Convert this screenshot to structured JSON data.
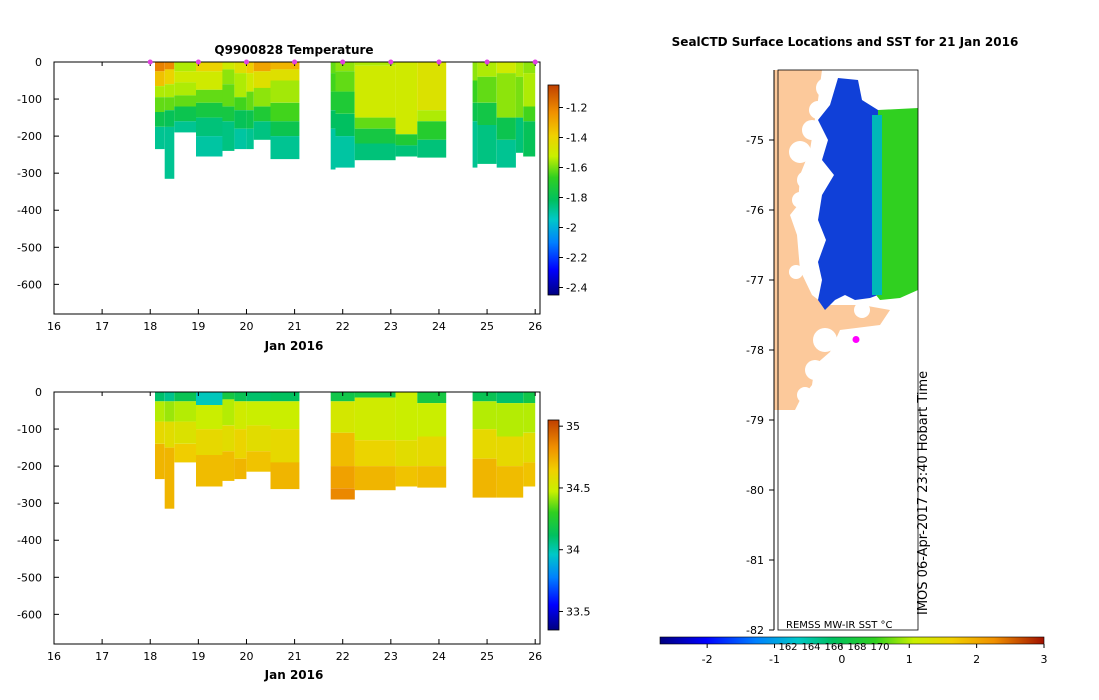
{
  "chart_data": [
    {
      "type": "heatmap",
      "title": "Q9900828  Temperature",
      "xlabel": "Jan 2016",
      "xlim": [
        16,
        26.1
      ],
      "ylim": [
        -680,
        0
      ],
      "xticks": [
        "16",
        "17",
        "18",
        "19",
        "20",
        "21",
        "22",
        "23",
        "24",
        "25",
        "26"
      ],
      "yticks": [
        "0",
        "-100",
        "-200",
        "-300",
        "-400",
        "-500",
        "-600"
      ],
      "colorbar": {
        "range": [
          -2.45,
          -1.05
        ],
        "ticks": [
          "-1.2",
          "-1.4",
          "-1.6",
          "-1.8",
          "-2",
          "-2.2",
          "-2.4"
        ]
      },
      "profile_markers": [
        18,
        19,
        20,
        21,
        22,
        23,
        24,
        25,
        26
      ],
      "profiles": [
        {
          "t0": 18.1,
          "t1": 18.3,
          "bottom": -235,
          "layers": [
            [
              0,
              -25,
              -1.2
            ],
            [
              -25,
              -65,
              -1.35
            ],
            [
              -65,
              -95,
              -1.55
            ],
            [
              -95,
              -135,
              -1.62
            ],
            [
              -135,
              -175,
              -1.78
            ],
            [
              -175,
              -235,
              -1.88
            ]
          ]
        },
        {
          "t0": 18.3,
          "t1": 18.5,
          "bottom": -315,
          "layers": [
            [
              0,
              -20,
              -1.22
            ],
            [
              -20,
              -60,
              -1.4
            ],
            [
              -60,
              -95,
              -1.55
            ],
            [
              -95,
              -130,
              -1.62
            ],
            [
              -130,
              -175,
              -1.8
            ],
            [
              -175,
              -315,
              -1.88
            ]
          ]
        },
        {
          "t0": 18.5,
          "t1": 18.95,
          "bottom": -190,
          "layers": [
            [
              0,
              -25,
              -1.55
            ],
            [
              -25,
              -55,
              -1.5
            ],
            [
              -55,
              -90,
              -1.55
            ],
            [
              -90,
              -120,
              -1.62
            ],
            [
              -120,
              -160,
              -1.78
            ],
            [
              -160,
              -190,
              -1.88
            ]
          ]
        },
        {
          "t0": 18.95,
          "t1": 19.5,
          "bottom": -255,
          "layers": [
            [
              0,
              -25,
              -1.4
            ],
            [
              -25,
              -75,
              -1.5
            ],
            [
              -75,
              -110,
              -1.62
            ],
            [
              -110,
              -150,
              -1.75
            ],
            [
              -150,
              -200,
              -1.85
            ],
            [
              -200,
              -255,
              -1.9
            ]
          ]
        },
        {
          "t0": 19.5,
          "t1": 19.75,
          "bottom": -240,
          "layers": [
            [
              0,
              -20,
              -1.5
            ],
            [
              -20,
              -60,
              -1.58
            ],
            [
              -60,
              -120,
              -1.62
            ],
            [
              -120,
              -160,
              -1.75
            ],
            [
              -160,
              -240,
              -1.86
            ]
          ]
        },
        {
          "t0": 19.75,
          "t1": 20.0,
          "bottom": -235,
          "layers": [
            [
              0,
              -30,
              -1.45
            ],
            [
              -30,
              -95,
              -1.55
            ],
            [
              -95,
              -130,
              -1.65
            ],
            [
              -130,
              -180,
              -1.8
            ],
            [
              -180,
              -235,
              -1.9
            ]
          ]
        },
        {
          "t0": 20.0,
          "t1": 20.15,
          "bottom": -235,
          "layers": [
            [
              0,
              -30,
              -1.38
            ],
            [
              -30,
              -80,
              -1.5
            ],
            [
              -80,
              -130,
              -1.62
            ],
            [
              -130,
              -180,
              -1.78
            ],
            [
              -180,
              -235,
              -1.88
            ]
          ]
        },
        {
          "t0": 20.15,
          "t1": 20.5,
          "bottom": -210,
          "layers": [
            [
              0,
              -25,
              -1.28
            ],
            [
              -25,
              -70,
              -1.45
            ],
            [
              -70,
              -120,
              -1.58
            ],
            [
              -120,
              -160,
              -1.72
            ],
            [
              -160,
              -210,
              -1.86
            ]
          ]
        },
        {
          "t0": 20.5,
          "t1": 21.1,
          "bottom": -262,
          "layers": [
            [
              0,
              -20,
              -1.32
            ],
            [
              -20,
              -50,
              -1.45
            ],
            [
              -50,
              -110,
              -1.56
            ],
            [
              -110,
              -160,
              -1.65
            ],
            [
              -160,
              -200,
              -1.78
            ],
            [
              -200,
              -262,
              -1.88
            ]
          ]
        },
        {
          "t0": 21.75,
          "t1": 21.85,
          "bottom": -290,
          "layers": [
            [
              0,
              -30,
              -1.62
            ],
            [
              -30,
              -80,
              -1.65
            ],
            [
              -80,
              -130,
              -1.72
            ],
            [
              -130,
              -180,
              -1.82
            ],
            [
              -180,
              -290,
              -1.9
            ]
          ]
        },
        {
          "t0": 21.85,
          "t1": 22.25,
          "bottom": -285,
          "layers": [
            [
              0,
              -25,
              -1.58
            ],
            [
              -25,
              -80,
              -1.62
            ],
            [
              -80,
              -140,
              -1.72
            ],
            [
              -140,
              -200,
              -1.82
            ],
            [
              -200,
              -285,
              -1.9
            ]
          ]
        },
        {
          "t0": 22.25,
          "t1": 23.1,
          "bottom": -265,
          "layers": [
            [
              0,
              -10,
              -1.55
            ],
            [
              -10,
              -150,
              -1.5
            ],
            [
              -150,
              -180,
              -1.62
            ],
            [
              -180,
              -220,
              -1.75
            ],
            [
              -220,
              -265,
              -1.85
            ]
          ]
        },
        {
          "t0": 23.1,
          "t1": 23.55,
          "bottom": -255,
          "layers": [
            [
              0,
              -195,
              -1.5
            ],
            [
              -195,
              -225,
              -1.72
            ],
            [
              -225,
              -255,
              -1.85
            ]
          ]
        },
        {
          "t0": 23.55,
          "t1": 24.15,
          "bottom": -258,
          "layers": [
            [
              0,
              -130,
              -1.46
            ],
            [
              -130,
              -160,
              -1.55
            ],
            [
              -160,
              -210,
              -1.7
            ],
            [
              -210,
              -258,
              -1.85
            ]
          ]
        },
        {
          "t0": 24.7,
          "t1": 24.8,
          "bottom": -285,
          "layers": [
            [
              0,
              -50,
              -1.58
            ],
            [
              -50,
              -110,
              -1.66
            ],
            [
              -110,
              -160,
              -1.78
            ],
            [
              -160,
              -285,
              -1.88
            ]
          ]
        },
        {
          "t0": 24.8,
          "t1": 25.2,
          "bottom": -275,
          "layers": [
            [
              0,
              -40,
              -1.55
            ],
            [
              -40,
              -110,
              -1.62
            ],
            [
              -110,
              -170,
              -1.76
            ],
            [
              -170,
              -275,
              -1.86
            ]
          ]
        },
        {
          "t0": 25.2,
          "t1": 25.6,
          "bottom": -285,
          "layers": [
            [
              0,
              -30,
              -1.5
            ],
            [
              -30,
              -150,
              -1.58
            ],
            [
              -150,
              -210,
              -1.78
            ],
            [
              -210,
              -285,
              -1.88
            ]
          ]
        },
        {
          "t0": 25.6,
          "t1": 25.75,
          "bottom": -245,
          "layers": [
            [
              0,
              -40,
              -1.55
            ],
            [
              -40,
              -150,
              -1.6
            ],
            [
              -150,
              -245,
              -1.85
            ]
          ]
        },
        {
          "t0": 25.75,
          "t1": 26.0,
          "bottom": -255,
          "layers": [
            [
              0,
              -30,
              -1.58
            ],
            [
              -30,
              -120,
              -1.55
            ],
            [
              -120,
              -160,
              -1.65
            ],
            [
              -160,
              -255,
              -1.8
            ]
          ]
        }
      ]
    },
    {
      "type": "heatmap",
      "title": "",
      "xlabel": "Jan 2016",
      "xlim": [
        16,
        26.1
      ],
      "ylim": [
        -680,
        0
      ],
      "xticks": [
        "16",
        "17",
        "18",
        "19",
        "20",
        "21",
        "22",
        "23",
        "24",
        "25",
        "26"
      ],
      "yticks": [
        "0",
        "-100",
        "-200",
        "-300",
        "-400",
        "-500",
        "-600"
      ],
      "colorbar": {
        "range": [
          33.35,
          35.05
        ],
        "ticks": [
          "35",
          "34.5",
          "34",
          "33.5"
        ]
      },
      "profiles": [
        {
          "t0": 18.1,
          "t1": 18.3,
          "bottom": -235,
          "layers": [
            [
              0,
              -25,
              34.1
            ],
            [
              -25,
              -80,
              34.45
            ],
            [
              -80,
              -140,
              34.6
            ],
            [
              -140,
              -235,
              34.72
            ]
          ]
        },
        {
          "t0": 18.3,
          "t1": 18.5,
          "bottom": -315,
          "layers": [
            [
              0,
              -25,
              34.05
            ],
            [
              -25,
              -80,
              34.42
            ],
            [
              -80,
              -150,
              34.58
            ],
            [
              -150,
              -315,
              34.72
            ]
          ]
        },
        {
          "t0": 18.5,
          "t1": 18.95,
          "bottom": -190,
          "layers": [
            [
              0,
              -25,
              34.15
            ],
            [
              -25,
              -80,
              34.45
            ],
            [
              -80,
              -140,
              34.55
            ],
            [
              -140,
              -190,
              34.65
            ]
          ]
        },
        {
          "t0": 18.95,
          "t1": 19.5,
          "bottom": -255,
          "layers": [
            [
              0,
              -35,
              33.98
            ],
            [
              -35,
              -100,
              34.48
            ],
            [
              -100,
              -170,
              34.6
            ],
            [
              -170,
              -255,
              34.7
            ]
          ]
        },
        {
          "t0": 19.5,
          "t1": 19.75,
          "bottom": -240,
          "layers": [
            [
              0,
              -20,
              34.2
            ],
            [
              -20,
              -90,
              34.45
            ],
            [
              -90,
              -160,
              34.58
            ],
            [
              -160,
              -240,
              34.7
            ]
          ]
        },
        {
          "t0": 19.75,
          "t1": 20.0,
          "bottom": -235,
          "layers": [
            [
              0,
              -25,
              34.15
            ],
            [
              -25,
              -100,
              34.5
            ],
            [
              -100,
              -180,
              34.62
            ],
            [
              -180,
              -235,
              34.72
            ]
          ]
        },
        {
          "t0": 20.0,
          "t1": 20.5,
          "bottom": -215,
          "layers": [
            [
              0,
              -25,
              34.1
            ],
            [
              -25,
              -90,
              34.48
            ],
            [
              -90,
              -160,
              34.58
            ],
            [
              -160,
              -215,
              34.68
            ]
          ]
        },
        {
          "t0": 20.5,
          "t1": 21.1,
          "bottom": -262,
          "layers": [
            [
              0,
              -25,
              34.12
            ],
            [
              -25,
              -100,
              34.48
            ],
            [
              -100,
              -190,
              34.6
            ],
            [
              -190,
              -262,
              34.72
            ]
          ]
        },
        {
          "t0": 21.75,
          "t1": 22.25,
          "bottom": -290,
          "layers": [
            [
              0,
              -25,
              34.18
            ],
            [
              -25,
              -110,
              34.52
            ],
            [
              -110,
              -200,
              34.7
            ],
            [
              -200,
              -260,
              34.78
            ],
            [
              -260,
              -290,
              34.85
            ]
          ]
        },
        {
          "t0": 22.25,
          "t1": 23.1,
          "bottom": -265,
          "layers": [
            [
              0,
              -15,
              34.2
            ],
            [
              -15,
              -130,
              34.5
            ],
            [
              -130,
              -200,
              34.62
            ],
            [
              -200,
              -265,
              34.72
            ]
          ]
        },
        {
          "t0": 23.1,
          "t1": 23.55,
          "bottom": -255,
          "layers": [
            [
              0,
              -130,
              34.48
            ],
            [
              -130,
              -200,
              34.58
            ],
            [
              -200,
              -255,
              34.68
            ]
          ]
        },
        {
          "t0": 23.55,
          "t1": 24.15,
          "bottom": -258,
          "layers": [
            [
              0,
              -30,
              34.2
            ],
            [
              -30,
              -120,
              34.48
            ],
            [
              -120,
              -200,
              34.6
            ],
            [
              -200,
              -258,
              34.7
            ]
          ]
        },
        {
          "t0": 24.7,
          "t1": 25.2,
          "bottom": -285,
          "layers": [
            [
              0,
              -25,
              34.15
            ],
            [
              -25,
              -100,
              34.45
            ],
            [
              -100,
              -180,
              34.6
            ],
            [
              -180,
              -285,
              34.72
            ]
          ]
        },
        {
          "t0": 25.2,
          "t1": 25.75,
          "bottom": -285,
          "layers": [
            [
              0,
              -30,
              34.1
            ],
            [
              -30,
              -120,
              34.45
            ],
            [
              -120,
              -200,
              34.6
            ],
            [
              -200,
              -285,
              34.7
            ]
          ]
        },
        {
          "t0": 25.75,
          "t1": 26.0,
          "bottom": -255,
          "layers": [
            [
              0,
              -30,
              34.18
            ],
            [
              -30,
              -110,
              34.45
            ],
            [
              -110,
              -190,
              34.58
            ],
            [
              -190,
              -255,
              34.68
            ]
          ]
        }
      ]
    },
    {
      "type": "heatmap",
      "title": "SealCTD Surface Locations and SST for 21 Jan 2016",
      "ylim": [
        -82,
        -74
      ],
      "yticks": [
        "-75",
        "-76",
        "-77",
        "-78",
        "-79",
        "-80",
        "-81",
        "-82"
      ],
      "colorbar": {
        "label": "REMSS MW-IR SST °C",
        "range": [
          -2.7,
          3.0
        ],
        "ticks": [
          "-2",
          "-1",
          "0",
          "1",
          "2",
          "3"
        ],
        "inner_labels": [
          "162",
          "164",
          "166",
          "168",
          "170"
        ]
      },
      "seal_location": {
        "lat": -77.85
      },
      "watermark": "IMOS 06-Apr-2017 23:40 Hobart Time"
    }
  ]
}
